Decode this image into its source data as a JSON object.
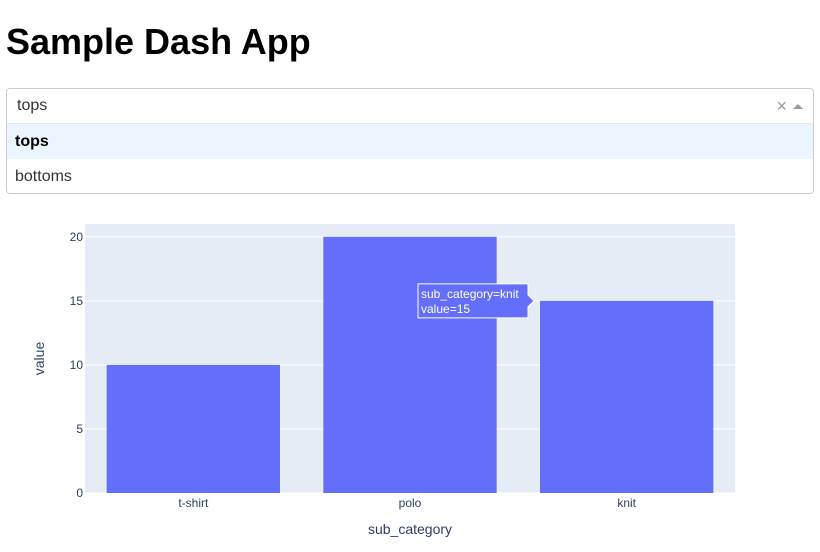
{
  "page": {
    "title": "Sample Dash App"
  },
  "dropdown": {
    "value": "tops",
    "clear_icon": "×",
    "options": [
      "tops",
      "bottoms"
    ],
    "selected_index": 0
  },
  "chart_data": {
    "type": "bar",
    "categories": [
      "t-shirt",
      "polo",
      "knit"
    ],
    "values": [
      10,
      20,
      15
    ],
    "xlabel": "sub_category",
    "ylabel": "value",
    "ylim": [
      0,
      21
    ],
    "yticks": [
      0,
      5,
      10,
      15,
      20
    ],
    "grid": true,
    "bar_color": "#636efa",
    "plot_bg": "#e5ecf6",
    "hover": {
      "category_index": 2,
      "lines": [
        "sub_category=knit",
        "value=15"
      ]
    }
  }
}
